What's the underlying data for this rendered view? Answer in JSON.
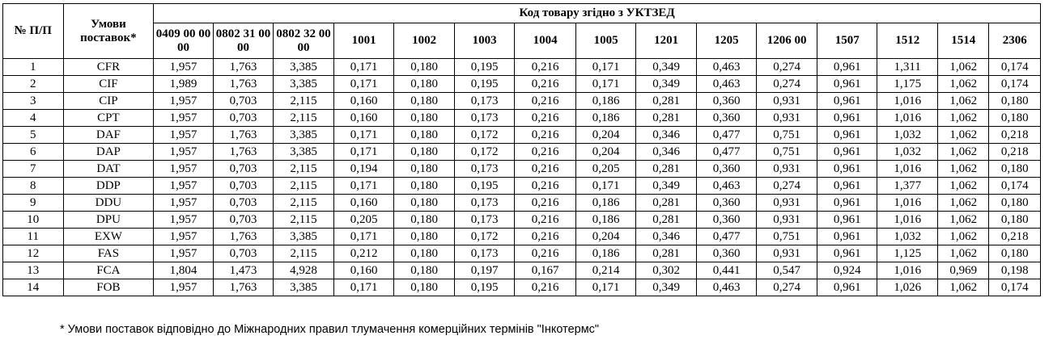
{
  "header": {
    "no_label": "№ П/П",
    "terms_label": "Умови поставок*",
    "codes_group_label": "Код товару згідно з УКТЗЕД",
    "codes": [
      "0409 00 00 00",
      "0802 31 00 00",
      "0802 32 00 00",
      "1001",
      "1002",
      "1003",
      "1004",
      "1005",
      "1201",
      "1205",
      "1206 00",
      "1507",
      "1512",
      "1514",
      "2306"
    ]
  },
  "rows": [
    {
      "no": "1",
      "term": "CFR",
      "values": [
        "1,957",
        "1,763",
        "3,385",
        "0,171",
        "0,180",
        "0,195",
        "0,216",
        "0,171",
        "0,349",
        "0,463",
        "0,274",
        "0,961",
        "1,311",
        "1,062",
        "0,174"
      ]
    },
    {
      "no": "2",
      "term": "CIF",
      "values": [
        "1,989",
        "1,763",
        "3,385",
        "0,171",
        "0,180",
        "0,195",
        "0,216",
        "0,171",
        "0,349",
        "0,463",
        "0,274",
        "0,961",
        "1,175",
        "1,062",
        "0,174"
      ]
    },
    {
      "no": "3",
      "term": "CIP",
      "values": [
        "1,957",
        "0,703",
        "2,115",
        "0,160",
        "0,180",
        "0,173",
        "0,216",
        "0,186",
        "0,281",
        "0,360",
        "0,931",
        "0,961",
        "1,016",
        "1,062",
        "0,180"
      ]
    },
    {
      "no": "4",
      "term": "CPT",
      "values": [
        "1,957",
        "0,703",
        "2,115",
        "0,160",
        "0,180",
        "0,173",
        "0,216",
        "0,186",
        "0,281",
        "0,360",
        "0,931",
        "0,961",
        "1,016",
        "1,062",
        "0,180"
      ]
    },
    {
      "no": "5",
      "term": "DAF",
      "values": [
        "1,957",
        "1,763",
        "3,385",
        "0,171",
        "0,180",
        "0,172",
        "0,216",
        "0,204",
        "0,346",
        "0,477",
        "0,751",
        "0,961",
        "1,032",
        "1,062",
        "0,218"
      ]
    },
    {
      "no": "6",
      "term": "DAP",
      "values": [
        "1,957",
        "1,763",
        "3,385",
        "0,171",
        "0,180",
        "0,172",
        "0,216",
        "0,204",
        "0,346",
        "0,477",
        "0,751",
        "0,961",
        "1,032",
        "1,062",
        "0,218"
      ]
    },
    {
      "no": "7",
      "term": "DAT",
      "values": [
        "1,957",
        "0,703",
        "2,115",
        "0,194",
        "0,180",
        "0,173",
        "0,216",
        "0,205",
        "0,281",
        "0,360",
        "0,931",
        "0,961",
        "1,016",
        "1,062",
        "0,180"
      ]
    },
    {
      "no": "8",
      "term": "DDP",
      "values": [
        "1,957",
        "0,703",
        "2,115",
        "0,171",
        "0,180",
        "0,195",
        "0,216",
        "0,171",
        "0,349",
        "0,463",
        "0,274",
        "0,961",
        "1,377",
        "1,062",
        "0,174"
      ]
    },
    {
      "no": "9",
      "term": "DDU",
      "values": [
        "1,957",
        "0,703",
        "2,115",
        "0,160",
        "0,180",
        "0,173",
        "0,216",
        "0,186",
        "0,281",
        "0,360",
        "0,931",
        "0,961",
        "1,016",
        "1,062",
        "0,180"
      ]
    },
    {
      "no": "10",
      "term": "DPU",
      "values": [
        "1,957",
        "0,703",
        "2,115",
        "0,205",
        "0,180",
        "0,173",
        "0,216",
        "0,186",
        "0,281",
        "0,360",
        "0,931",
        "0,961",
        "1,016",
        "1,062",
        "0,180"
      ]
    },
    {
      "no": "11",
      "term": "EXW",
      "values": [
        "1,957",
        "1,763",
        "3,385",
        "0,171",
        "0,180",
        "0,172",
        "0,216",
        "0,204",
        "0,346",
        "0,477",
        "0,751",
        "0,961",
        "1,032",
        "1,062",
        "0,218"
      ]
    },
    {
      "no": "12",
      "term": "FAS",
      "values": [
        "1,957",
        "0,703",
        "2,115",
        "0,212",
        "0,180",
        "0,173",
        "0,216",
        "0,186",
        "0,281",
        "0,360",
        "0,931",
        "0,961",
        "1,125",
        "1,062",
        "0,180"
      ]
    },
    {
      "no": "13",
      "term": "FCA",
      "values": [
        "1,804",
        "1,473",
        "4,928",
        "0,160",
        "0,180",
        "0,197",
        "0,167",
        "0,214",
        "0,302",
        "0,441",
        "0,547",
        "0,924",
        "1,016",
        "0,969",
        "0,198"
      ]
    },
    {
      "no": "14",
      "term": "FOB",
      "values": [
        "1,957",
        "1,763",
        "3,385",
        "0,171",
        "0,180",
        "0,195",
        "0,216",
        "0,171",
        "0,349",
        "0,463",
        "0,274",
        "0,961",
        "1,026",
        "1,062",
        "0,174"
      ]
    }
  ],
  "footnote": "* Умови поставок відповідно до Міжнародних правил тлумачення комерційних термінів \"Інкотермс\""
}
